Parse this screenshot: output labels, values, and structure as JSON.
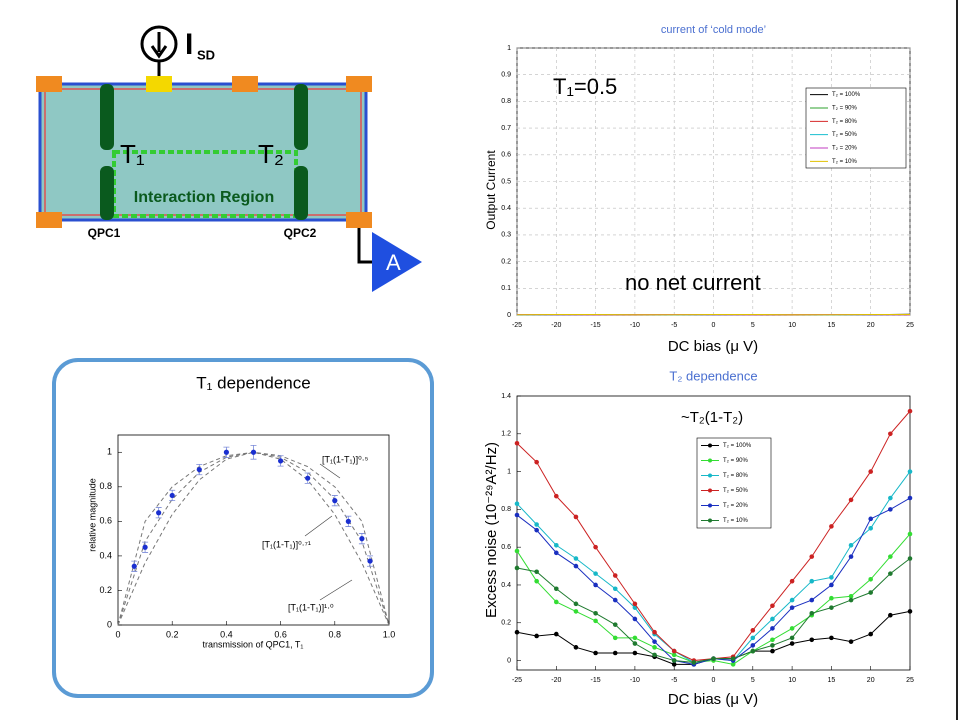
{
  "diagram": {
    "source_label": "I",
    "source_subscript": "SD",
    "qpc_labels": [
      "T₁",
      "T₂"
    ],
    "region_label": "Interaction Region",
    "qpc_names": [
      "QPC1",
      "QPC2"
    ],
    "amplifier_label": "A"
  },
  "chart_data": [
    {
      "type": "line",
      "title": "current of ‘cold mode’",
      "x_label": "DC bias (μ V)",
      "y_label": "Output Current",
      "annotations": [
        "T₁=0.5",
        "no net current"
      ],
      "x": [
        -25,
        -20,
        -15,
        -10,
        -5,
        0,
        5,
        10,
        15,
        20,
        25
      ],
      "series": [
        {
          "name": "T₂ = 100%",
          "color": "#000000",
          "values": [
            0.002,
            0.001,
            0.002,
            0.001,
            0.002,
            0.001,
            0.002,
            0.001,
            0.002,
            0.001,
            0.003
          ]
        },
        {
          "name": "T₂ = 90%",
          "color": "#2ca02c",
          "values": [
            0.001,
            0.002,
            0.001,
            0.002,
            0.001,
            0.002,
            0.001,
            0.002,
            0.001,
            0.002,
            0.002
          ]
        },
        {
          "name": "T₂ = 80%",
          "color": "#d62728",
          "values": [
            0.002,
            0.002,
            0.001,
            0.001,
            0.002,
            0.002,
            0.001,
            0.001,
            0.002,
            0.002,
            0.001
          ]
        },
        {
          "name": "T₂ = 50%",
          "color": "#17becf",
          "values": [
            0.001,
            0.001,
            0.002,
            0.002,
            0.001,
            0.001,
            0.002,
            0.002,
            0.001,
            0.001,
            0.002
          ]
        },
        {
          "name": "T₂ = 20%",
          "color": "#c03cc0",
          "values": [
            0.002,
            0.001,
            0.001,
            0.002,
            0.002,
            0.001,
            0.001,
            0.002,
            0.002,
            0.001,
            0.001
          ]
        },
        {
          "name": "T₂ = 10%",
          "color": "#e0c000",
          "values": [
            0.001,
            0.002,
            0.002,
            0.001,
            0.001,
            0.002,
            0.002,
            0.001,
            0.001,
            0.002,
            0.002
          ]
        }
      ],
      "xlim": [
        -25,
        25
      ],
      "xticks": [
        -25,
        -20,
        -15,
        -10,
        -5,
        0,
        5,
        10,
        15,
        20,
        25
      ],
      "ylim": [
        0,
        1
      ],
      "yticks": [
        0,
        0.1,
        0.2,
        0.3,
        0.4,
        0.5,
        0.6,
        0.7,
        0.8,
        0.9,
        1
      ],
      "grid": true,
      "markers": false,
      "legend": "upper right"
    },
    {
      "type": "line",
      "title": "T₂ dependence",
      "x_label": "DC bias (μ V)",
      "y_label": "Excess noise (10⁻²⁹A²/Hz)",
      "annotations": [
        "~T₂(1-T₂)"
      ],
      "x": [
        -25,
        -22.5,
        -20,
        -17.5,
        -15,
        -12.5,
        -10,
        -7.5,
        -5,
        -2.5,
        0,
        2.5,
        5,
        7.5,
        10,
        12.5,
        15,
        17.5,
        20,
        22.5,
        25
      ],
      "series": [
        {
          "name": "T₂ = 100%",
          "color": "#000000",
          "values": [
            0.15,
            0.13,
            0.14,
            0.07,
            0.04,
            0.04,
            0.04,
            0.02,
            -0.02,
            -0.02,
            0.01,
            0.01,
            0.05,
            0.05,
            0.09,
            0.11,
            0.12,
            0.1,
            0.14,
            0.24,
            0.26
          ]
        },
        {
          "name": "T₂ = 90%",
          "color": "#33dd33",
          "values": [
            0.58,
            0.42,
            0.31,
            0.26,
            0.21,
            0.12,
            0.12,
            0.07,
            0.03,
            -0.01,
            0,
            -0.02,
            0.05,
            0.11,
            0.17,
            0.24,
            0.33,
            0.34,
            0.43,
            0.55,
            0.67
          ]
        },
        {
          "name": "T₂ = 80%",
          "color": "#17b8c8",
          "values": [
            0.83,
            0.72,
            0.61,
            0.54,
            0.46,
            0.38,
            0.28,
            0.14,
            0.05,
            -0.01,
            0.01,
            0,
            0.12,
            0.22,
            0.32,
            0.42,
            0.44,
            0.61,
            0.7,
            0.86,
            1.0
          ]
        },
        {
          "name": "T₂ = 50%",
          "color": "#cc2222",
          "values": [
            1.15,
            1.05,
            0.87,
            0.76,
            0.6,
            0.45,
            0.3,
            0.15,
            0.05,
            0,
            0.01,
            0.02,
            0.16,
            0.29,
            0.42,
            0.55,
            0.71,
            0.85,
            1.0,
            1.2,
            1.32
          ]
        },
        {
          "name": "T₂ = 20%",
          "color": "#1a2fc0",
          "values": [
            0.77,
            0.69,
            0.57,
            0.5,
            0.4,
            0.32,
            0.22,
            0.1,
            0,
            -0.02,
            0.01,
            0,
            0.08,
            0.17,
            0.28,
            0.32,
            0.4,
            0.55,
            0.75,
            0.8,
            0.86
          ]
        },
        {
          "name": "T₂ = 10%",
          "color": "#1f7a2f",
          "values": [
            0.49,
            0.47,
            0.38,
            0.3,
            0.25,
            0.19,
            0.09,
            0.03,
            0,
            -0.01,
            0.01,
            0.01,
            0.05,
            0.08,
            0.12,
            0.25,
            0.28,
            0.32,
            0.36,
            0.46,
            0.54
          ]
        }
      ],
      "xlim": [
        -25,
        25
      ],
      "xticks": [
        -25,
        -20,
        -15,
        -10,
        -5,
        0,
        5,
        10,
        15,
        20,
        25
      ],
      "ylim": [
        -0.05,
        1.4
      ],
      "yticks": [
        0,
        0.2,
        0.4,
        0.6,
        0.8,
        1,
        1.2,
        1.4
      ],
      "grid": false,
      "markers": true,
      "legend": "upper center"
    },
    {
      "type": "scatter",
      "title": "T₁ dependence",
      "x_label": "transmission of QPC1, T₁",
      "y_label": "relative magnitude",
      "annotations": [
        "[T₁(1-T₁)]⁰·⁵",
        "[T₁(1-T₁)]⁰·⁷¹",
        "[T₁(1-T₁)]¹·⁰"
      ],
      "x": [
        0.06,
        0.1,
        0.15,
        0.2,
        0.3,
        0.4,
        0.5,
        0.6,
        0.7,
        0.8,
        0.85,
        0.9,
        0.93
      ],
      "values": [
        0.34,
        0.45,
        0.65,
        0.75,
        0.9,
        1.0,
        1.0,
        0.95,
        0.85,
        0.72,
        0.6,
        0.5,
        0.37
      ],
      "errors": [
        0.03,
        0.03,
        0.03,
        0.03,
        0.03,
        0.03,
        0.04,
        0.03,
        0.03,
        0.03,
        0.03,
        0.03,
        0.03
      ],
      "color": "#1a2fd0",
      "curve_x": [
        0,
        0.1,
        0.2,
        0.3,
        0.4,
        0.5,
        0.6,
        0.7,
        0.8,
        0.9,
        1
      ],
      "curves": [
        {
          "color": "#777777",
          "values": [
            0,
            0.6,
            0.8,
            0.917,
            0.98,
            1,
            0.98,
            0.917,
            0.8,
            0.6,
            0
          ]
        },
        {
          "color": "#777777",
          "values": [
            0,
            0.484,
            0.728,
            0.884,
            0.971,
            1,
            0.971,
            0.884,
            0.728,
            0.484,
            0
          ]
        },
        {
          "color": "#777777",
          "values": [
            0,
            0.36,
            0.64,
            0.84,
            0.96,
            1,
            0.96,
            0.84,
            0.64,
            0.36,
            0
          ]
        }
      ],
      "xlim": [
        0,
        1
      ],
      "xticks": [
        0,
        0.2,
        0.4,
        0.6,
        0.8,
        {
          "value": 1,
          "label": "1.0"
        }
      ],
      "ylim": [
        0,
        1.1
      ],
      "yticks": [
        0,
        0.2,
        0.4,
        0.6,
        0.8,
        1
      ],
      "grid": false
    }
  ]
}
